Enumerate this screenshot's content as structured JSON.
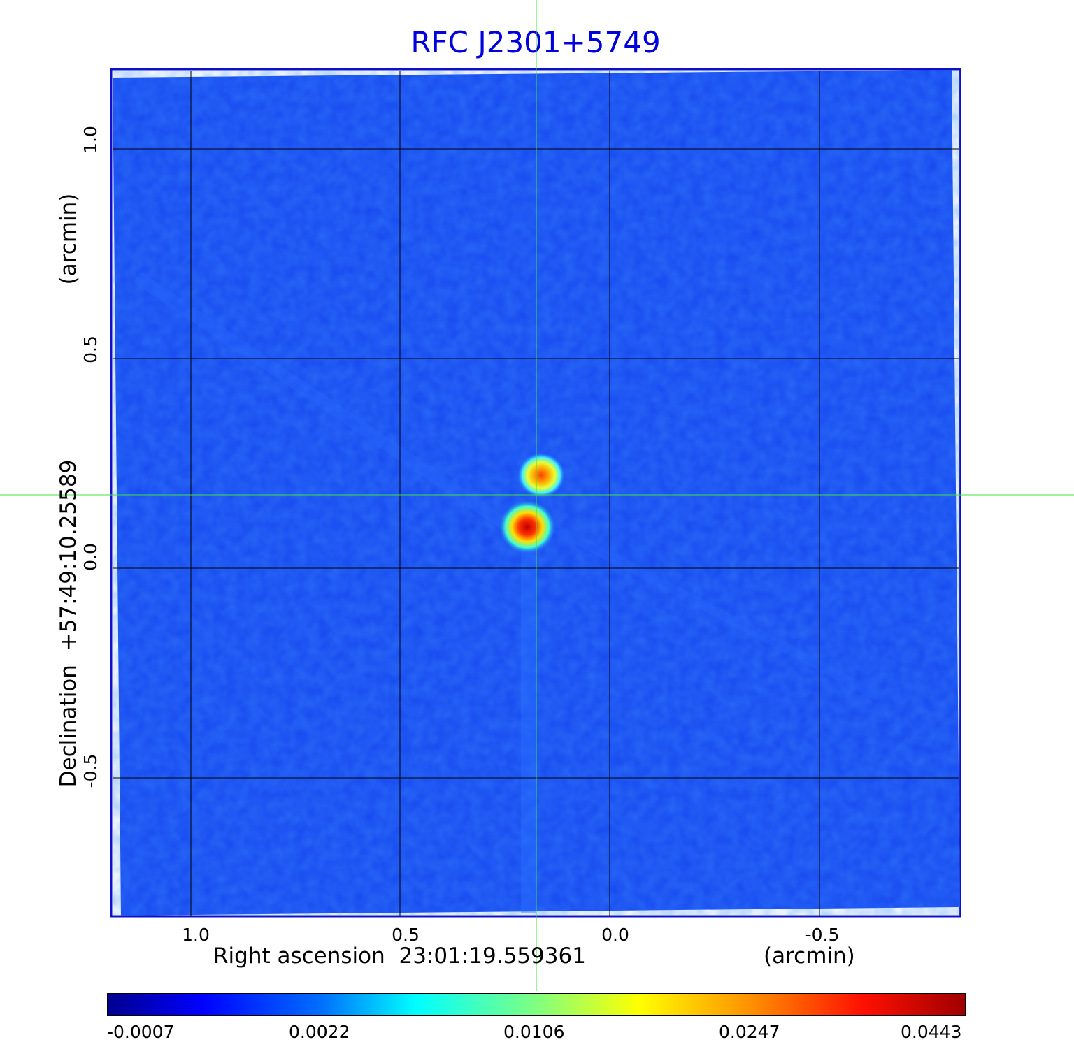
{
  "title": "RFC J2301+5749",
  "xaxis": {
    "label": "Right ascension",
    "center": "23:01:19.559361",
    "unit": "(arcmin)",
    "ticks": [
      "1.0",
      "0.5",
      "0.0",
      "-0.5"
    ]
  },
  "yaxis": {
    "label": "Declination",
    "center": "+57:49:10.25589",
    "unit": "(arcmin)",
    "ticks": [
      "1.0",
      "0.5",
      "0.0",
      "-0.5"
    ]
  },
  "colorbar": {
    "ticks": [
      "-0.0007",
      "0.0022",
      "0.0106",
      "0.0247",
      "0.0443"
    ],
    "colormap": "jet"
  },
  "colors": {
    "title": "#0000dd",
    "frame": "#1010c8",
    "background_field": "#1648f0",
    "crosshair": "#40e040",
    "grid": "#000000"
  },
  "image": {
    "type": "radio-map",
    "features": [
      "two-compact-components",
      "crosshair",
      "coordinate-grid"
    ]
  }
}
